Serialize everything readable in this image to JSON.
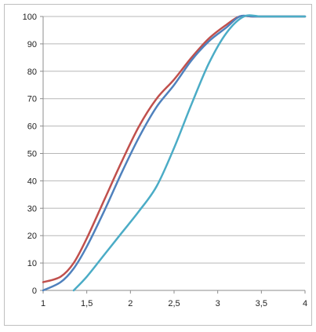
{
  "chart_data": {
    "type": "line",
    "title": "",
    "xlabel": "",
    "ylabel": "",
    "xlim": [
      1,
      4
    ],
    "ylim": [
      0,
      100
    ],
    "x_ticks": [
      1,
      1.5,
      2,
      2.5,
      3,
      3.5,
      4
    ],
    "x_tick_labels": [
      "1",
      "1,5",
      "2",
      "2,5",
      "3",
      "3,5",
      "4"
    ],
    "y_ticks": [
      0,
      10,
      20,
      30,
      40,
      50,
      60,
      70,
      80,
      90,
      100
    ],
    "y_tick_labels": [
      "0",
      "10",
      "20",
      "30",
      "40",
      "50",
      "60",
      "70",
      "80",
      "90",
      "100"
    ],
    "grid": "horizontal",
    "legend": "none",
    "series": [
      {
        "color": "#c0504d",
        "x": [
          1,
          1.2,
          1.35,
          1.5,
          1.7,
          1.9,
          2.1,
          2.3,
          2.5,
          2.7,
          2.9,
          3.1,
          3.25,
          3.4,
          3.6,
          3.8,
          4
        ],
        "y": [
          3,
          5,
          10,
          19,
          33,
          47,
          60,
          70,
          77,
          85,
          92,
          97,
          100,
          100,
          100,
          100,
          100
        ]
      },
      {
        "color": "#4f81bd",
        "x": [
          1,
          1.2,
          1.35,
          1.5,
          1.7,
          1.9,
          2.1,
          2.3,
          2.5,
          2.7,
          2.9,
          3.1,
          3.25,
          3.4,
          3.6,
          3.8,
          4
        ],
        "y": [
          0,
          3,
          8,
          16,
          29,
          43,
          56,
          67,
          75,
          84,
          91,
          96,
          100,
          100,
          100,
          100,
          100
        ]
      },
      {
        "color": "#4bacc6",
        "x": [
          1.35,
          1.5,
          1.7,
          1.9,
          2.1,
          2.3,
          2.5,
          2.7,
          2.9,
          3.1,
          3.3,
          3.5,
          3.7,
          4
        ],
        "y": [
          0,
          5,
          13,
          21,
          29,
          38,
          52,
          68,
          83,
          94,
          100,
          100,
          100,
          100
        ]
      }
    ]
  }
}
